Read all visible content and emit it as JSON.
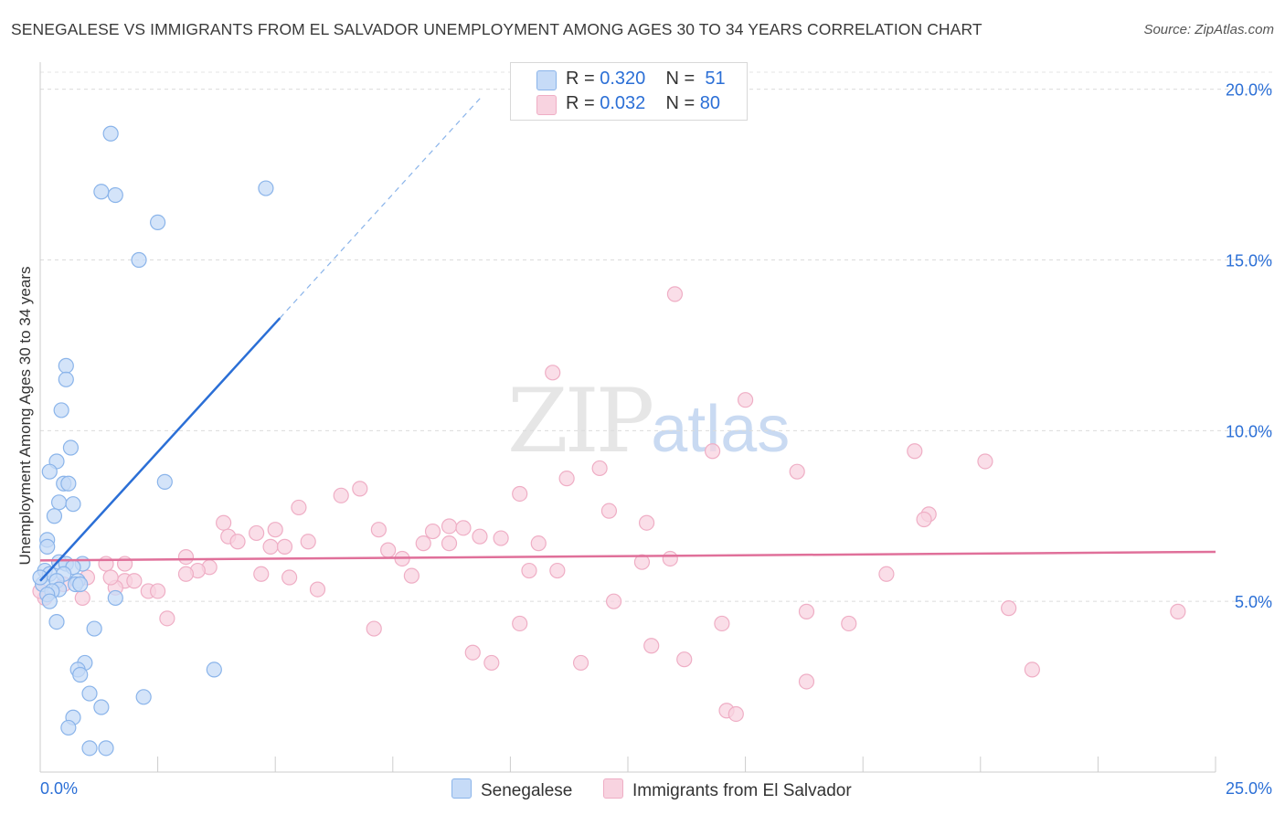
{
  "title": "SENEGALESE VS IMMIGRANTS FROM EL SALVADOR UNEMPLOYMENT AMONG AGES 30 TO 34 YEARS CORRELATION CHART",
  "source": "Source: ZipAtlas.com",
  "watermark": {
    "zip": "ZIP",
    "atlas": "atlas"
  },
  "legend": {
    "rows": [
      {
        "r_label": "R = ",
        "r_value": "0.320",
        "n_label": "N = ",
        "n_value": "51"
      },
      {
        "r_label": "R = ",
        "r_value": "0.032",
        "n_label": "N = ",
        "n_value": "80"
      }
    ]
  },
  "chart_data": {
    "type": "scatter",
    "title": "SENEGALESE VS IMMIGRANTS FROM EL SALVADOR UNEMPLOYMENT AMONG AGES 30 TO 34 YEARS CORRELATION CHART",
    "xlabel": "",
    "ylabel": "Unemployment Among Ages 30 to 34 years",
    "xlim": [
      0,
      25
    ],
    "ylim": [
      0,
      20.5
    ],
    "x_tick_labels": [
      "0.0%",
      "25.0%"
    ],
    "y_ticks": [
      5,
      10,
      15,
      20
    ],
    "y_tick_labels": [
      "5.0%",
      "10.0%",
      "15.0%",
      "20.0%"
    ],
    "grid": true,
    "legend_position": "top-center",
    "series": [
      {
        "name": "Senegalese",
        "color": "#8ab4ea",
        "fill": "#c6dbf7",
        "line_color": "#2b6fd6",
        "R": 0.32,
        "N": 51,
        "trend": {
          "x": [
            0.0,
            5.1
          ],
          "y": [
            5.6,
            13.3
          ]
        },
        "trend_dashed": {
          "x": [
            5.1,
            9.4
          ],
          "y": [
            13.3,
            19.8
          ]
        },
        "points": [
          [
            1.5,
            18.7
          ],
          [
            1.3,
            17.0
          ],
          [
            1.6,
            16.9
          ],
          [
            4.8,
            17.1
          ],
          [
            2.5,
            16.1
          ],
          [
            2.1,
            15.0
          ],
          [
            0.55,
            11.9
          ],
          [
            0.55,
            11.5
          ],
          [
            0.45,
            10.6
          ],
          [
            0.65,
            9.5
          ],
          [
            0.35,
            9.1
          ],
          [
            0.2,
            8.8
          ],
          [
            0.5,
            8.45
          ],
          [
            0.6,
            8.45
          ],
          [
            2.65,
            8.5
          ],
          [
            0.4,
            7.9
          ],
          [
            0.7,
            7.85
          ],
          [
            0.3,
            7.5
          ],
          [
            0.15,
            6.8
          ],
          [
            0.15,
            6.6
          ],
          [
            0.4,
            6.15
          ],
          [
            0.55,
            6.1
          ],
          [
            0.9,
            6.1
          ],
          [
            0.7,
            6.0
          ],
          [
            0.1,
            5.9
          ],
          [
            0.2,
            5.8
          ],
          [
            0.5,
            5.8
          ],
          [
            0.35,
            5.6
          ],
          [
            0.8,
            5.6
          ],
          [
            0.05,
            5.5
          ],
          [
            0.75,
            5.5
          ],
          [
            0.85,
            5.5
          ],
          [
            0.4,
            5.35
          ],
          [
            0.25,
            5.3
          ],
          [
            0.15,
            5.2
          ],
          [
            1.6,
            5.1
          ],
          [
            0.2,
            5.0
          ],
          [
            0.35,
            4.4
          ],
          [
            1.15,
            4.2
          ],
          [
            0.95,
            3.2
          ],
          [
            0.8,
            3.0
          ],
          [
            3.7,
            3.0
          ],
          [
            0.85,
            2.85
          ],
          [
            1.05,
            2.3
          ],
          [
            2.2,
            2.2
          ],
          [
            1.3,
            1.9
          ],
          [
            0.7,
            1.6
          ],
          [
            0.6,
            1.3
          ],
          [
            1.05,
            0.7
          ],
          [
            1.4,
            0.7
          ],
          [
            0.0,
            5.7
          ]
        ]
      },
      {
        "name": "Immigrants from El Salvador",
        "color": "#efaec5",
        "fill": "#f8d3e0",
        "line_color": "#e0709a",
        "R": 0.032,
        "N": 80,
        "trend": {
          "x": [
            0.0,
            25.0
          ],
          "y": [
            6.2,
            6.45
          ]
        },
        "points": [
          [
            13.5,
            14.0
          ],
          [
            10.9,
            11.7
          ],
          [
            15.0,
            10.9
          ],
          [
            14.3,
            9.4
          ],
          [
            18.6,
            9.4
          ],
          [
            20.1,
            9.1
          ],
          [
            11.9,
            8.9
          ],
          [
            16.1,
            8.8
          ],
          [
            11.2,
            8.6
          ],
          [
            6.8,
            8.3
          ],
          [
            6.4,
            8.1
          ],
          [
            10.2,
            8.15
          ],
          [
            5.5,
            7.75
          ],
          [
            12.1,
            7.65
          ],
          [
            18.9,
            7.55
          ],
          [
            18.8,
            7.4
          ],
          [
            12.9,
            7.3
          ],
          [
            3.9,
            7.3
          ],
          [
            8.7,
            7.2
          ],
          [
            9.0,
            7.15
          ],
          [
            5.0,
            7.1
          ],
          [
            7.2,
            7.1
          ],
          [
            8.35,
            7.05
          ],
          [
            4.6,
            7.0
          ],
          [
            4.0,
            6.9
          ],
          [
            9.35,
            6.9
          ],
          [
            9.8,
            6.85
          ],
          [
            4.2,
            6.75
          ],
          [
            5.7,
            6.75
          ],
          [
            8.15,
            6.7
          ],
          [
            8.7,
            6.7
          ],
          [
            10.6,
            6.7
          ],
          [
            4.9,
            6.6
          ],
          [
            5.2,
            6.6
          ],
          [
            7.4,
            6.5
          ],
          [
            3.1,
            6.3
          ],
          [
            13.4,
            6.25
          ],
          [
            7.7,
            6.25
          ],
          [
            12.8,
            6.15
          ],
          [
            1.8,
            6.1
          ],
          [
            1.4,
            6.1
          ],
          [
            3.6,
            6.0
          ],
          [
            3.35,
            5.9
          ],
          [
            10.4,
            5.9
          ],
          [
            11.0,
            5.9
          ],
          [
            3.1,
            5.8
          ],
          [
            4.7,
            5.8
          ],
          [
            18.0,
            5.8
          ],
          [
            7.9,
            5.75
          ],
          [
            1.0,
            5.7
          ],
          [
            5.3,
            5.7
          ],
          [
            1.8,
            5.6
          ],
          [
            2.0,
            5.6
          ],
          [
            0.5,
            5.5
          ],
          [
            1.6,
            5.4
          ],
          [
            5.9,
            5.35
          ],
          [
            2.3,
            5.3
          ],
          [
            2.5,
            5.3
          ],
          [
            0.1,
            5.1
          ],
          [
            0.9,
            5.1
          ],
          [
            12.2,
            5.0
          ],
          [
            20.6,
            4.8
          ],
          [
            24.2,
            4.7
          ],
          [
            16.3,
            4.7
          ],
          [
            2.7,
            4.5
          ],
          [
            10.2,
            4.35
          ],
          [
            17.2,
            4.35
          ],
          [
            14.5,
            4.35
          ],
          [
            7.1,
            4.2
          ],
          [
            13.0,
            3.7
          ],
          [
            9.2,
            3.5
          ],
          [
            13.7,
            3.3
          ],
          [
            9.6,
            3.2
          ],
          [
            11.5,
            3.2
          ],
          [
            21.1,
            3.0
          ],
          [
            16.3,
            2.65
          ],
          [
            14.6,
            1.8
          ],
          [
            14.8,
            1.7
          ],
          [
            0.0,
            5.3
          ],
          [
            1.5,
            5.7
          ]
        ]
      }
    ]
  }
}
